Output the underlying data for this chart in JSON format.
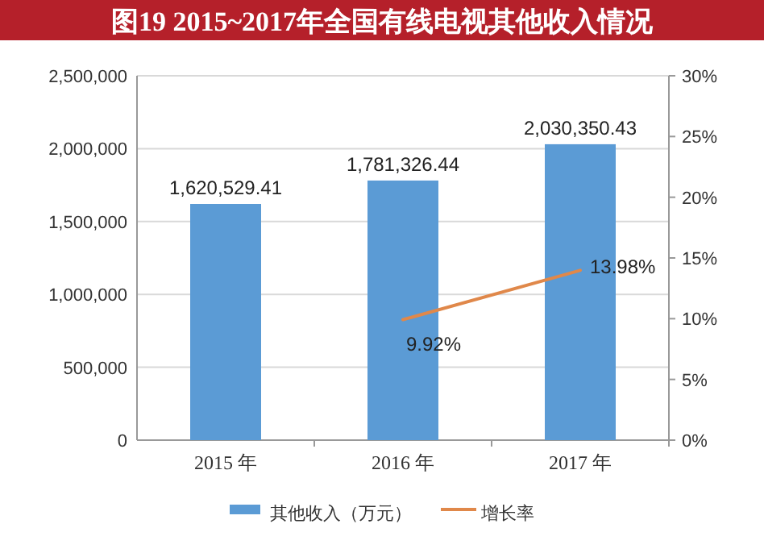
{
  "chart_data": {
    "type": "bar",
    "title": "图19 2015~2017年全国有线电视其他收入情况",
    "categories": [
      "2015 年",
      "2016 年",
      "2017 年"
    ],
    "series": [
      {
        "name": "其他收入（万元）",
        "color": "#5b9bd5",
        "values": [
          1620529.41,
          1781326.44,
          2030350.43
        ],
        "value_labels": [
          "1,620,529.41",
          "1,781,326.44",
          "2,030,350.43"
        ]
      },
      {
        "name": "增长率",
        "type": "line",
        "axis": "y2",
        "color": "#e0884a",
        "values": [
          null,
          9.92,
          13.98
        ],
        "value_labels": [
          null,
          "9.92%",
          "13.98%"
        ]
      }
    ],
    "ylim": [
      0,
      2500000
    ],
    "yticks": [
      0,
      {
        "value": 500000,
        "label": "500,000"
      },
      {
        "value": 1000000,
        "label": "1,000,000"
      },
      {
        "value": 1500000,
        "label": "1,500,000"
      },
      {
        "value": 2000000,
        "label": "2,000,000"
      },
      {
        "value": 2500000,
        "label": "2,500,000"
      }
    ],
    "y2lim": [
      0,
      30
    ],
    "y2ticks": [
      {
        "value": 0,
        "label": "0%"
      },
      {
        "value": 5,
        "label": "5%"
      },
      {
        "value": 10,
        "label": "10%"
      },
      {
        "value": 15,
        "label": "15%"
      },
      {
        "value": 20,
        "label": "20%"
      },
      {
        "value": 25,
        "label": "25%"
      },
      {
        "value": 30,
        "label": "30%"
      }
    ],
    "grid": "y",
    "legend": "bottom",
    "marker": "none",
    "line_style": "solid"
  }
}
